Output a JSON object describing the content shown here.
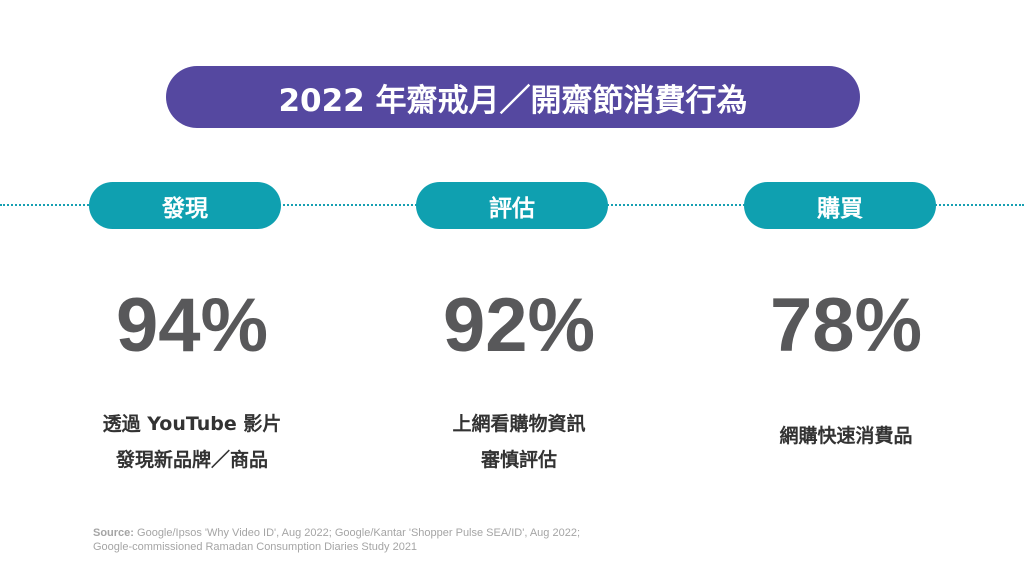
{
  "title": "2022 年齋戒月／開齋節消費行為",
  "colors": {
    "title_bg": "#5548a0",
    "tag_bg": "#0fa0b0",
    "percent": "#58585a"
  },
  "stages": [
    {
      "label": "發現",
      "percent": "94%",
      "desc": [
        "透過 YouTube 影片",
        "發現新品牌／商品"
      ]
    },
    {
      "label": "評估",
      "percent": "92%",
      "desc": [
        "上網看購物資訊",
        "審慎評估"
      ]
    },
    {
      "label": "購買",
      "percent": "78%",
      "desc": [
        "網購快速消費品"
      ]
    }
  ],
  "source": {
    "label": "Source:",
    "text": " Google/Ipsos 'Why Video ID', Aug 2022; Google/Kantar 'Shopper Pulse SEA/ID', Aug 2022;",
    "line2": "Google-commissioned Ramadan Consumption Diaries Study 2021"
  }
}
